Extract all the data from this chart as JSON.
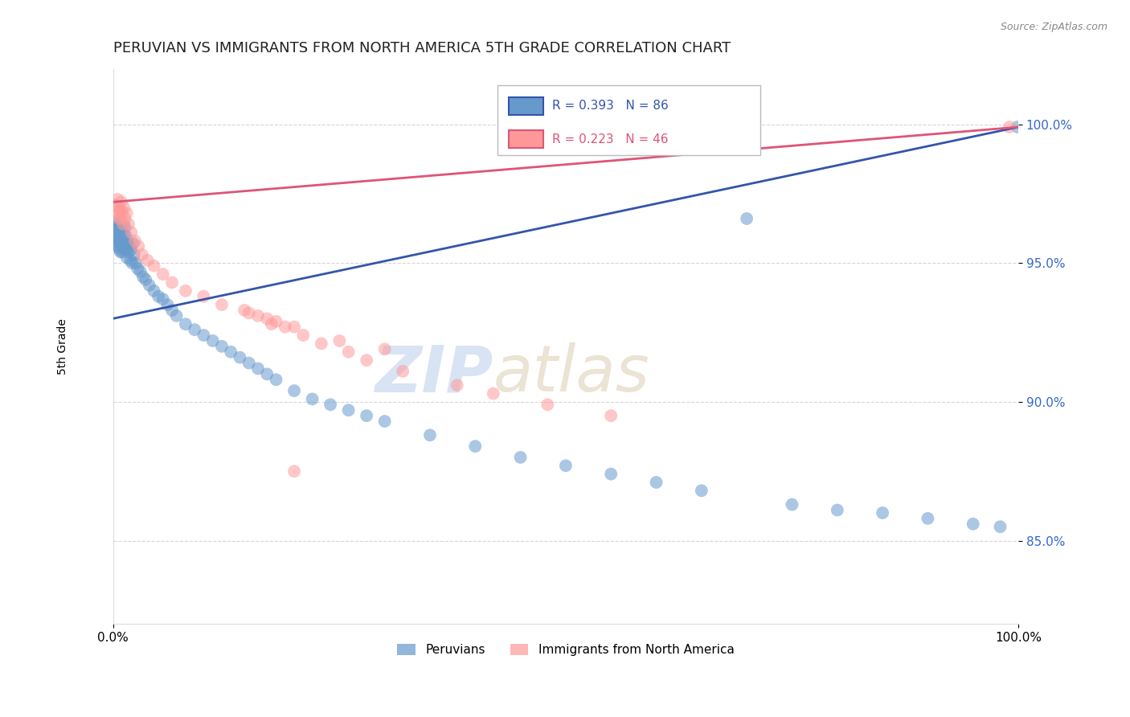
{
  "title": "PERUVIAN VS IMMIGRANTS FROM NORTH AMERICA 5TH GRADE CORRELATION CHART",
  "source_text": "Source: ZipAtlas.com",
  "ylabel": "5th Grade",
  "xlim": [
    0.0,
    1.0
  ],
  "ylim": [
    0.82,
    1.02
  ],
  "yticks": [
    0.85,
    0.9,
    0.95,
    1.0
  ],
  "ytick_labels": [
    "85.0%",
    "90.0%",
    "95.0%",
    "100.0%"
  ],
  "xticks": [
    0.0,
    1.0
  ],
  "xtick_labels": [
    "0.0%",
    "100.0%"
  ],
  "blue_R": 0.393,
  "blue_N": 86,
  "pink_R": 0.223,
  "pink_N": 46,
  "blue_color": "#6699CC",
  "pink_color": "#FF9999",
  "blue_line_color": "#3355AA",
  "pink_line_color": "#DD5577",
  "legend_label_blue": "Peruvians",
  "legend_label_pink": "Immigrants from North America",
  "watermark_zip": "ZIP",
  "watermark_atlas": "atlas",
  "background_color": "#ffffff",
  "grid_color": "#cccccc",
  "blue_scatter_x": [
    0.001,
    0.002,
    0.002,
    0.003,
    0.003,
    0.003,
    0.004,
    0.004,
    0.005,
    0.005,
    0.005,
    0.006,
    0.006,
    0.007,
    0.007,
    0.007,
    0.008,
    0.008,
    0.008,
    0.009,
    0.009,
    0.01,
    0.01,
    0.01,
    0.011,
    0.011,
    0.012,
    0.012,
    0.013,
    0.013,
    0.014,
    0.014,
    0.015,
    0.015,
    0.016,
    0.017,
    0.018,
    0.019,
    0.02,
    0.021,
    0.022,
    0.023,
    0.025,
    0.027,
    0.03,
    0.033,
    0.036,
    0.04,
    0.045,
    0.05,
    0.055,
    0.06,
    0.065,
    0.07,
    0.08,
    0.09,
    0.1,
    0.11,
    0.12,
    0.13,
    0.14,
    0.15,
    0.16,
    0.17,
    0.18,
    0.2,
    0.22,
    0.24,
    0.26,
    0.28,
    0.3,
    0.35,
    0.4,
    0.45,
    0.5,
    0.55,
    0.6,
    0.65,
    0.7,
    0.75,
    0.8,
    0.85,
    0.9,
    0.95,
    0.98,
    0.999
  ],
  "blue_scatter_y": [
    0.96,
    0.963,
    0.957,
    0.961,
    0.958,
    0.965,
    0.959,
    0.962,
    0.96,
    0.964,
    0.956,
    0.961,
    0.958,
    0.96,
    0.955,
    0.963,
    0.957,
    0.961,
    0.954,
    0.959,
    0.963,
    0.956,
    0.961,
    0.954,
    0.958,
    0.963,
    0.955,
    0.96,
    0.957,
    0.963,
    0.955,
    0.96,
    0.957,
    0.952,
    0.958,
    0.954,
    0.956,
    0.951,
    0.955,
    0.95,
    0.957,
    0.953,
    0.95,
    0.948,
    0.947,
    0.945,
    0.944,
    0.942,
    0.94,
    0.938,
    0.937,
    0.935,
    0.933,
    0.931,
    0.928,
    0.926,
    0.924,
    0.922,
    0.92,
    0.918,
    0.916,
    0.914,
    0.912,
    0.91,
    0.908,
    0.904,
    0.901,
    0.899,
    0.897,
    0.895,
    0.893,
    0.888,
    0.884,
    0.88,
    0.877,
    0.874,
    0.871,
    0.868,
    0.966,
    0.863,
    0.861,
    0.86,
    0.858,
    0.856,
    0.855,
    0.999
  ],
  "pink_scatter_x": [
    0.002,
    0.003,
    0.004,
    0.005,
    0.006,
    0.007,
    0.008,
    0.009,
    0.01,
    0.011,
    0.012,
    0.013,
    0.015,
    0.017,
    0.02,
    0.024,
    0.028,
    0.032,
    0.038,
    0.045,
    0.055,
    0.065,
    0.08,
    0.1,
    0.12,
    0.15,
    0.18,
    0.2,
    0.25,
    0.3,
    0.16,
    0.17,
    0.19,
    0.21,
    0.23,
    0.26,
    0.28,
    0.32,
    0.38,
    0.42,
    0.48,
    0.55,
    0.2,
    0.175,
    0.145,
    0.99
  ],
  "pink_scatter_y": [
    0.971,
    0.969,
    0.967,
    0.973,
    0.97,
    0.966,
    0.969,
    0.972,
    0.968,
    0.964,
    0.97,
    0.966,
    0.968,
    0.964,
    0.961,
    0.958,
    0.956,
    0.953,
    0.951,
    0.949,
    0.946,
    0.943,
    0.94,
    0.938,
    0.935,
    0.932,
    0.929,
    0.927,
    0.922,
    0.919,
    0.931,
    0.93,
    0.927,
    0.924,
    0.921,
    0.918,
    0.915,
    0.911,
    0.906,
    0.903,
    0.899,
    0.895,
    0.875,
    0.928,
    0.933,
    0.999
  ]
}
